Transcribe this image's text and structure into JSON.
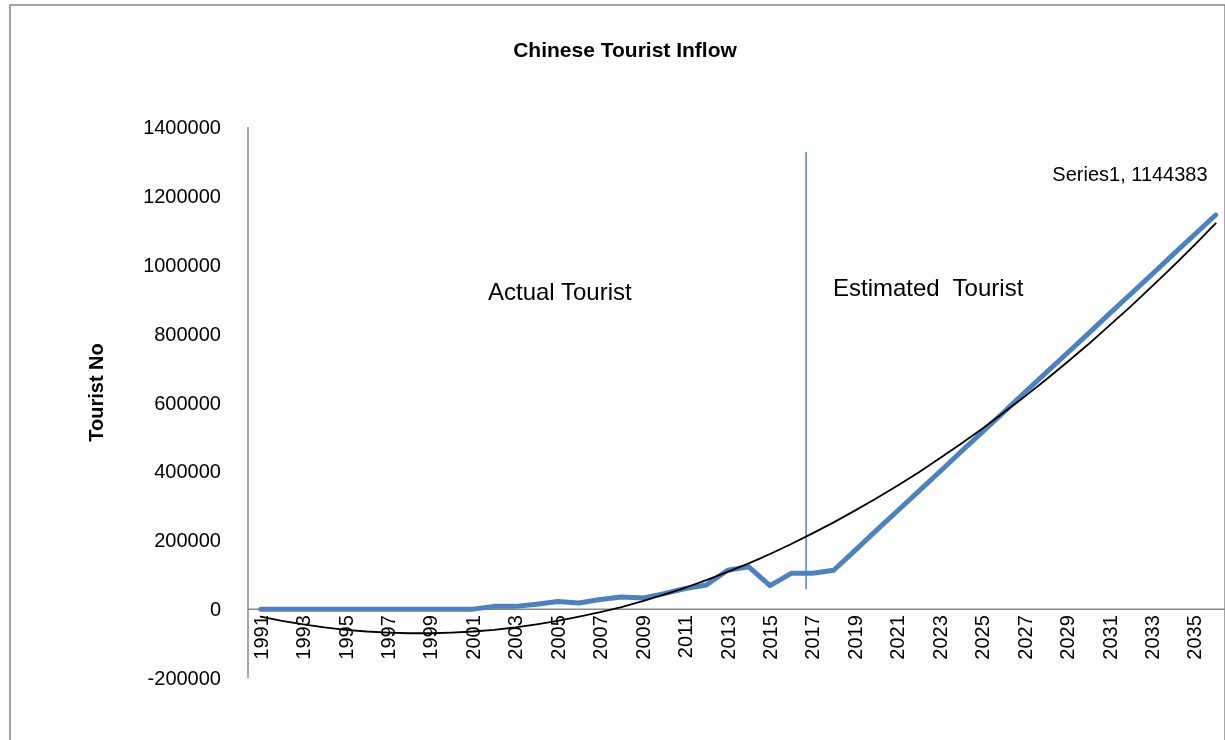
{
  "chart_data": {
    "type": "line",
    "title": "Chinese Tourist Inflow",
    "ylabel": "Tourist No",
    "x": [
      1991,
      1992,
      1993,
      1994,
      1995,
      1996,
      1997,
      1998,
      1999,
      2000,
      2001,
      2002,
      2003,
      2004,
      2005,
      2006,
      2007,
      2008,
      2009,
      2010,
      2011,
      2012,
      2013,
      2014,
      2015,
      2016,
      2017,
      2018,
      2019,
      2020,
      2021,
      2022,
      2023,
      2024,
      2025,
      2026,
      2027,
      2028,
      2029,
      2030,
      2031,
      2032,
      2033,
      2034,
      2035,
      2036
    ],
    "xlim": [
      1990.4,
      2036.3
    ],
    "xticks": [
      1991,
      1993,
      1995,
      1997,
      1999,
      2001,
      2003,
      2005,
      2007,
      2009,
      2011,
      2013,
      2015,
      2017,
      2019,
      2021,
      2023,
      2025,
      2027,
      2029,
      2031,
      2033,
      2035
    ],
    "ylim": [
      -200000,
      1400000
    ],
    "yticks": [
      -200000,
      0,
      200000,
      400000,
      600000,
      800000,
      1000000,
      1200000,
      1400000
    ],
    "series": [
      {
        "color": "#4f81bd",
        "values": [
          0,
          0,
          0,
          0,
          0,
          0,
          0,
          0,
          0,
          0,
          0,
          8000,
          8000,
          14000,
          22000,
          18000,
          28000,
          35000,
          32000,
          45000,
          60000,
          70000,
          113000,
          123000,
          68000,
          104000,
          104000,
          113000,
          170000,
          228000,
          285000,
          342000,
          399000,
          457000,
          514000,
          571000,
          629000,
          686000,
          743000,
          800000,
          858000,
          915000,
          972000,
          1030000,
          1087000,
          1144383
        ],
        "value_labels": [
          null,
          null,
          null,
          null,
          null,
          null,
          null,
          null,
          null,
          null,
          null,
          null,
          null,
          null,
          null,
          null,
          null,
          null,
          null,
          null,
          null,
          null,
          null,
          null,
          null,
          null,
          null,
          null,
          null,
          null,
          null,
          null,
          null,
          null,
          null,
          null,
          null,
          null,
          null,
          null,
          null,
          null,
          null,
          null,
          null,
          "Series1, 1144383"
        ]
      },
      {
        "color": "#000000",
        "values": [
          -22000,
          -34000,
          -44000,
          -53000,
          -60000,
          -65000,
          -68000,
          -70000,
          -70000,
          -68000,
          -65000,
          -60000,
          -53000,
          -44000,
          -34000,
          -22000,
          -9000,
          6000,
          23000,
          42000,
          62000,
          84000,
          108000,
          133000,
          160000,
          189000,
          220000,
          252000,
          286000,
          321000,
          358000,
          397000,
          438000,
          480000,
          524000,
          570000,
          617000,
          666000,
          717000,
          769000,
          824000,
          879000,
          937000,
          996000,
          1057000,
          1120000
        ]
      }
    ],
    "ref_lines": [
      {
        "axis": "x",
        "value": 2016.7,
        "color": "#4f81bd"
      }
    ],
    "annotations": [
      "Actual Tourist",
      "Estimated  Tourist"
    ],
    "grid": false
  }
}
